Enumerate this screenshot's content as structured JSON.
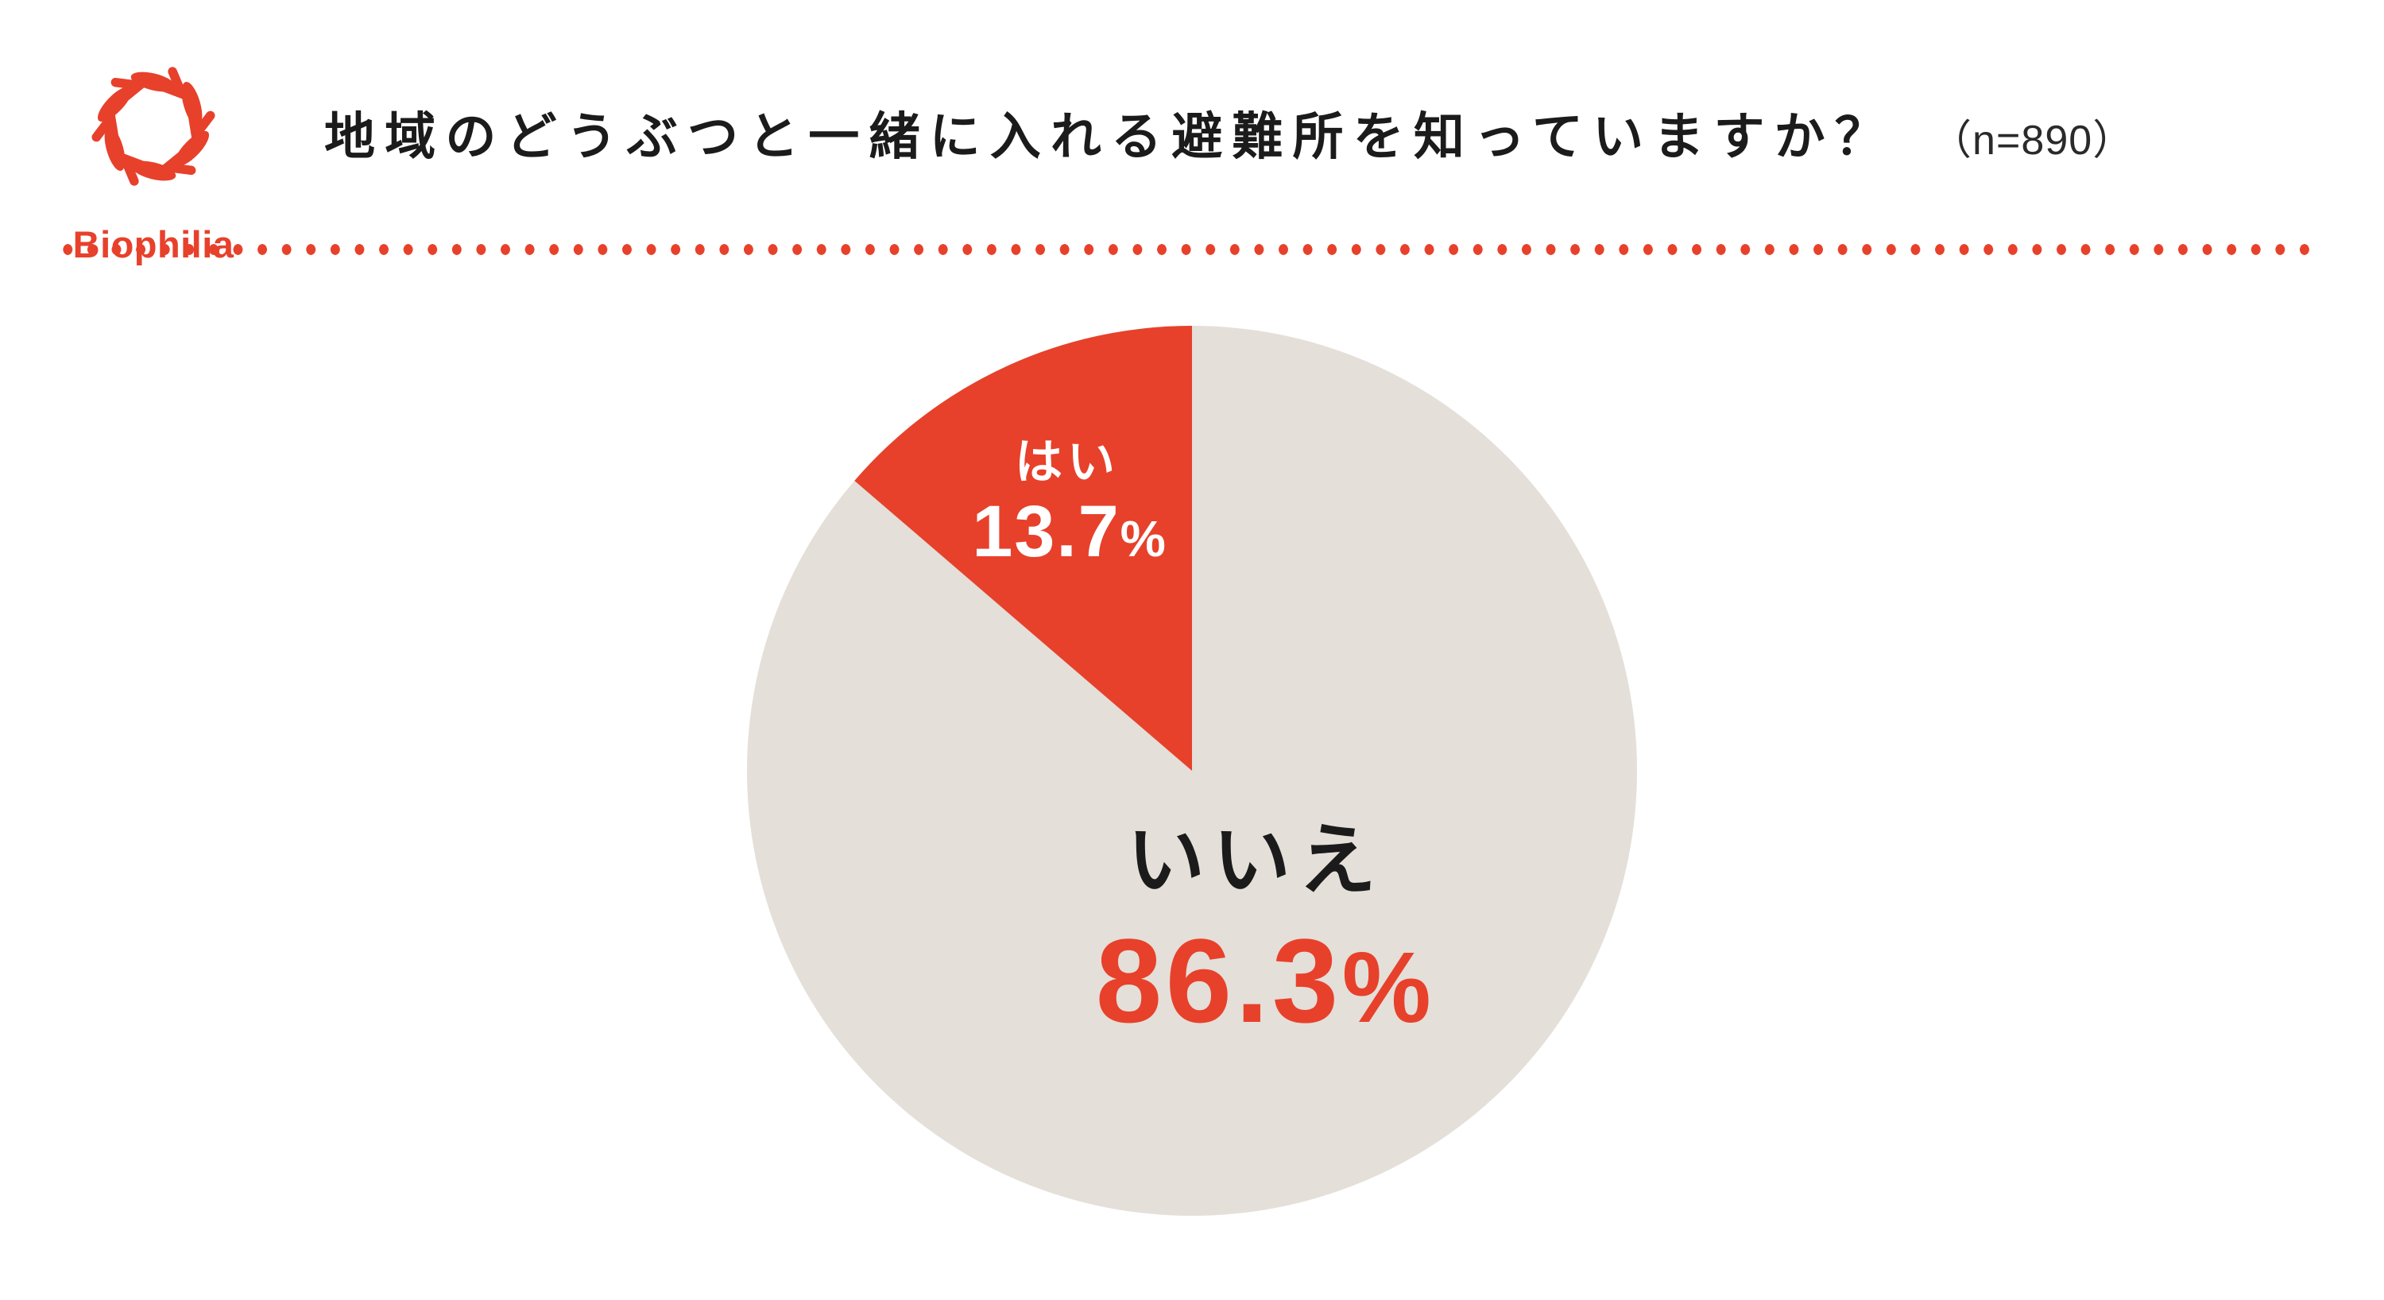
{
  "theme": {
    "accent": "#e7412b",
    "background": "#ffffff",
    "text_dark": "#1b1b1b"
  },
  "header": {
    "logo_text": "Biophilia",
    "title": "地域のどうぶつと一緒に入れる避難所を知っていますか？",
    "sample_size": "（n=890）"
  },
  "chart_data": {
    "type": "pie",
    "title": "地域のどうぶつと一緒に入れる避難所を知っていますか？",
    "n": 890,
    "sample_size_label": "（n=890）",
    "rotation": "yes slice starts at 12 o'clock and sweeps counterclockwise; remainder clockwise from top",
    "legend": "none",
    "labels_on_chart": true,
    "slices": [
      {
        "label": "はい",
        "value": 13.7,
        "value_text": "13.7",
        "unit": "%",
        "color": "#e7412b",
        "label_color": "#ffffff",
        "value_color": "#ffffff"
      },
      {
        "label": "いいえ",
        "value": 86.3,
        "value_text": "86.3",
        "unit": "%",
        "color": "#e4dfd8",
        "label_color": "#1b1b1b",
        "value_color": "#e7412b"
      }
    ]
  }
}
